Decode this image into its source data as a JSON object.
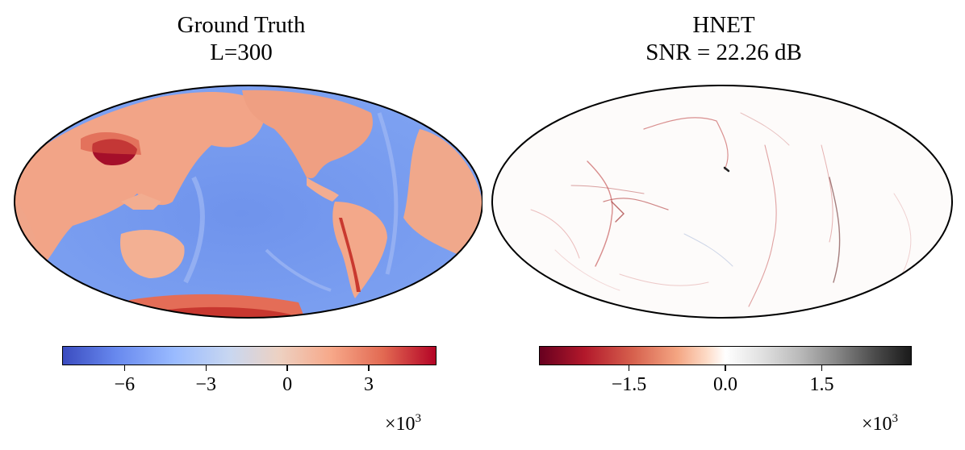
{
  "left_panel": {
    "title_line1": "Ground Truth",
    "title_line2": "L=300",
    "colormap": "coolwarm",
    "colorbar_ticks": [
      "−6",
      "−3",
      "0",
      "3"
    ],
    "colorbar_multiplier_base": "×10",
    "colorbar_multiplier_exp": "3",
    "colorbar_range": [
      -8.3,
      5.5
    ],
    "colorbar_tick_values": [
      -6,
      -3,
      0,
      3
    ],
    "colors": {
      "low": "#3b4cc0",
      "mid": "#dddddd",
      "high": "#b40426"
    }
  },
  "right_panel": {
    "title_line1": "HNET",
    "title_line2": "SNR = 22.26 dB",
    "colormap": "RdGy",
    "colorbar_ticks": [
      "−1.5",
      "0.0",
      "1.5"
    ],
    "colorbar_multiplier_base": "×10",
    "colorbar_multiplier_exp": "3",
    "colorbar_range": [
      -2.9,
      2.9
    ],
    "colorbar_tick_values": [
      -1.5,
      0.0,
      1.5
    ],
    "colors": {
      "low": "#67001f",
      "mid": "#ffffff",
      "high": "#1a1a1a"
    }
  }
}
